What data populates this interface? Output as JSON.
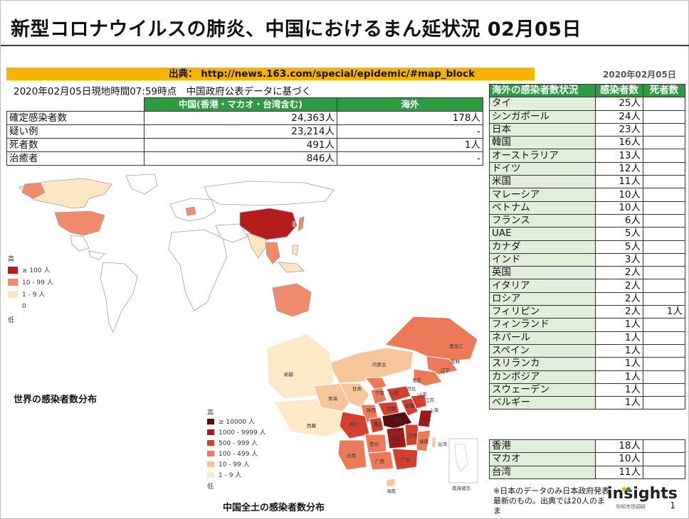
{
  "title": "新型コロナウイルスの肺炎、中国におけるまん延状況 02月05日",
  "source": "出典： http://news.163.com/special/epidemic/#map_block",
  "date_tag": "2020年02月05日",
  "subhead": "2020年02月05日現地時間07:59時点　中国政府公表データに基づく",
  "summary": {
    "headers": [
      "",
      "中国(香港・マカオ・台湾含む)",
      "海外"
    ],
    "rows": [
      {
        "label": "確定感染者数",
        "china": "24,363人",
        "overseas": "178人"
      },
      {
        "label": "疑い例",
        "china": "23,214人",
        "overseas": "-"
      },
      {
        "label": "死者数",
        "china": "491人",
        "overseas": "1人"
      },
      {
        "label": "治癒者",
        "china": "846人",
        "overseas": "-"
      }
    ]
  },
  "countries": {
    "headers": [
      "海外の感染者数状況",
      "感染者数",
      "死者数"
    ],
    "rows": [
      {
        "name": "タイ",
        "cases": "25人",
        "deaths": ""
      },
      {
        "name": "シンガポール",
        "cases": "24人",
        "deaths": ""
      },
      {
        "name": "日本",
        "cases": "23人",
        "deaths": ""
      },
      {
        "name": "韓国",
        "cases": "16人",
        "deaths": ""
      },
      {
        "name": "オーストラリア",
        "cases": "13人",
        "deaths": ""
      },
      {
        "name": "ドイツ",
        "cases": "12人",
        "deaths": ""
      },
      {
        "name": "米国",
        "cases": "11人",
        "deaths": ""
      },
      {
        "name": "マレーシア",
        "cases": "10人",
        "deaths": ""
      },
      {
        "name": "ベトナム",
        "cases": "10人",
        "deaths": ""
      },
      {
        "name": "フランス",
        "cases": "6人",
        "deaths": ""
      },
      {
        "name": "UAE",
        "cases": "5人",
        "deaths": ""
      },
      {
        "name": "カナダ",
        "cases": "5人",
        "deaths": ""
      },
      {
        "name": "インド",
        "cases": "3人",
        "deaths": ""
      },
      {
        "name": "英国",
        "cases": "2人",
        "deaths": ""
      },
      {
        "name": "イタリア",
        "cases": "2人",
        "deaths": ""
      },
      {
        "name": "ロシア",
        "cases": "2人",
        "deaths": ""
      },
      {
        "name": "フィリピン",
        "cases": "2人",
        "deaths": "1人"
      },
      {
        "name": "フィンランド",
        "cases": "1人",
        "deaths": ""
      },
      {
        "name": "ネパール",
        "cases": "1人",
        "deaths": ""
      },
      {
        "name": "スペイン",
        "cases": "1人",
        "deaths": ""
      },
      {
        "name": "スリランカ",
        "cases": "1人",
        "deaths": ""
      },
      {
        "name": "カンボジア",
        "cases": "1人",
        "deaths": ""
      },
      {
        "name": "スウェーデン",
        "cases": "1人",
        "deaths": ""
      },
      {
        "name": "ベルギー",
        "cases": "1人",
        "deaths": ""
      }
    ]
  },
  "regions": [
    {
      "name": "香港",
      "cases": "18人",
      "deaths": ""
    },
    {
      "name": "マカオ",
      "cases": "10人",
      "deaths": ""
    },
    {
      "name": "台湾",
      "cases": "11人",
      "deaths": ""
    }
  ],
  "note": "※日本のデータのみ日本政府発表最新のもの。出典では20人のまま",
  "logo": {
    "text": "insights",
    "sub": "华知市场调研"
  },
  "page_number": "1",
  "world_map": {
    "caption": "世界の感染者数分布",
    "legend_title": "高",
    "legend_low": "低",
    "legend": [
      {
        "label": "≥ 100 人",
        "color": "#b71c1c"
      },
      {
        "label": "10 - 99 人",
        "color": "#f08a6a"
      },
      {
        "label": "1 - 9 人",
        "color": "#fde6c4"
      },
      {
        "label": "0",
        "color": "#ffffff"
      }
    ]
  },
  "china_map": {
    "caption": "中国全土の感染者数分布",
    "legend_title": "高",
    "legend_low": "低",
    "legend": [
      {
        "label": "≥ 10000 人",
        "color": "#5a0d0d"
      },
      {
        "label": "1000 - 9999 人",
        "color": "#9e1b1b"
      },
      {
        "label": "500 - 999 人",
        "color": "#d3402e"
      },
      {
        "label": "100 - 499 人",
        "color": "#ec7a58"
      },
      {
        "label": "10 - 99 人",
        "color": "#f7c59a"
      },
      {
        "label": "1 - 9 人",
        "color": "#fde8c8"
      }
    ],
    "province_labels": [
      "黑龙江",
      "吉林",
      "辽宁",
      "内蒙古",
      "北京",
      "河北",
      "山西",
      "山东",
      "新疆",
      "西藏",
      "青海",
      "甘肃",
      "宁夏",
      "陕西",
      "四川",
      "重庆",
      "湖北",
      "河南",
      "安徽",
      "江苏",
      "上海",
      "浙江",
      "湖南",
      "江西",
      "福建",
      "贵州",
      "云南",
      "广西",
      "广东",
      "海南",
      "台湾",
      "南海诸岛"
    ]
  }
}
